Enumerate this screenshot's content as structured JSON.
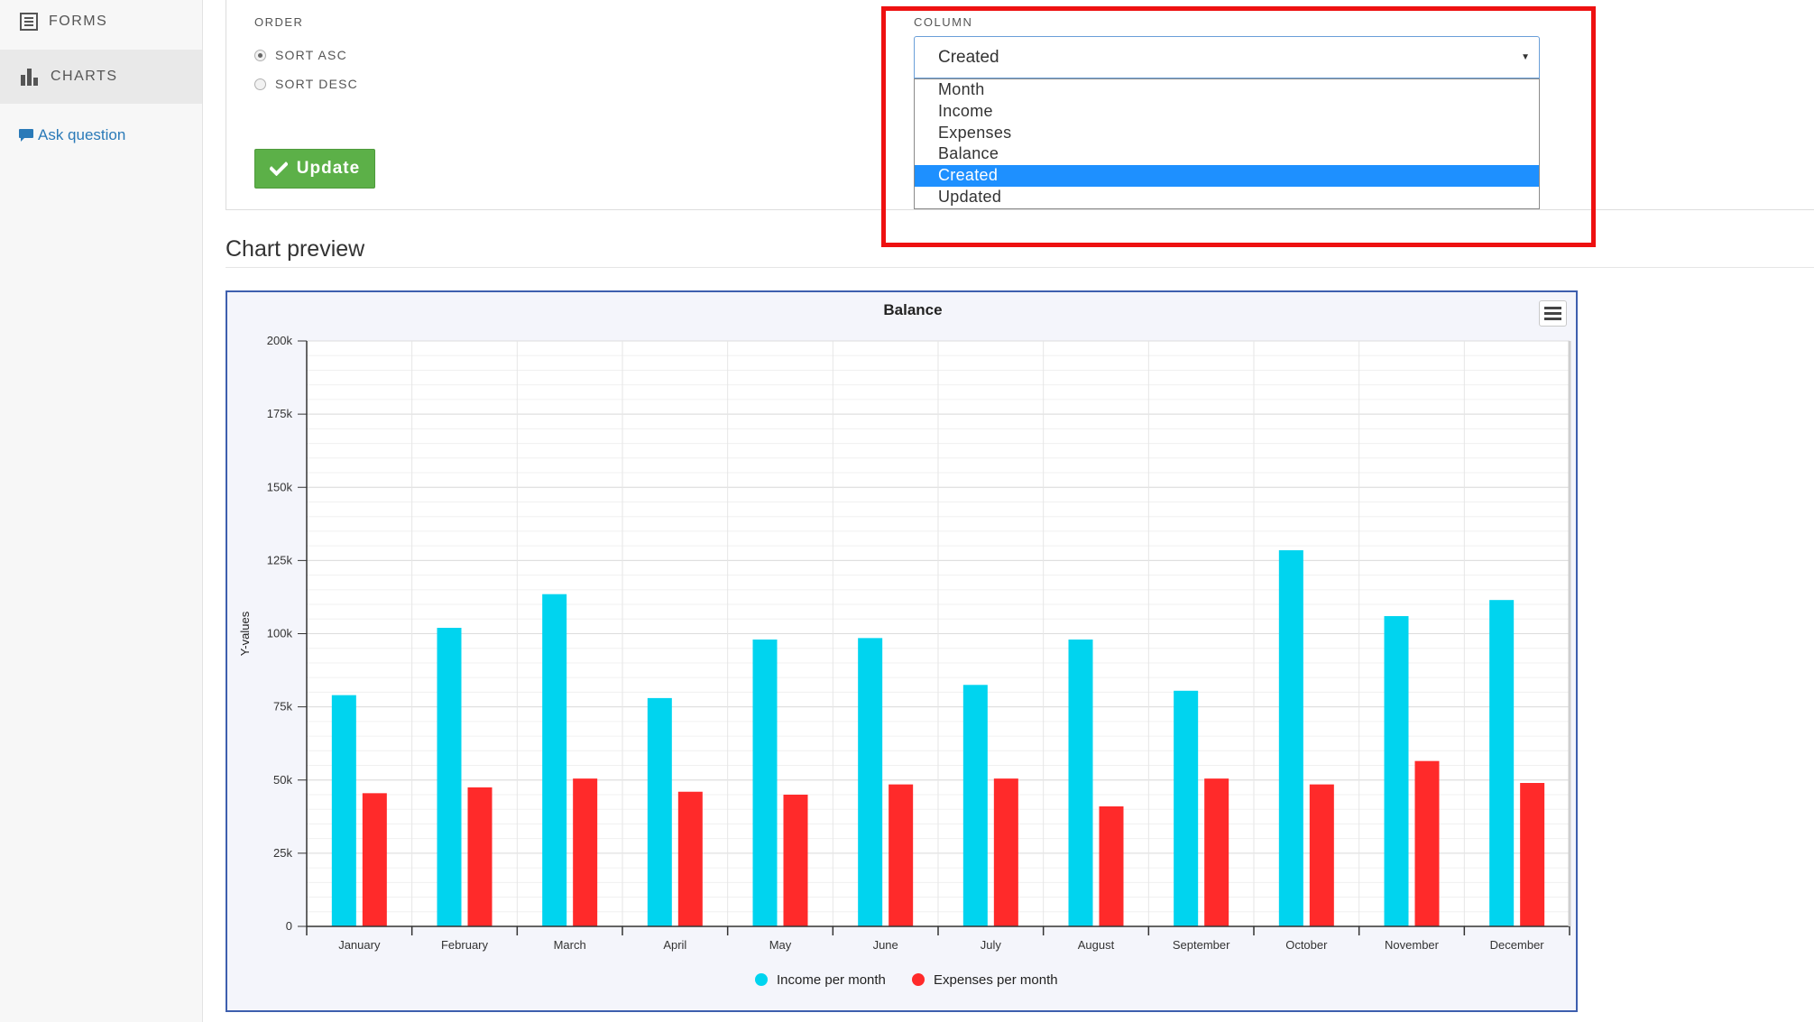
{
  "sidebar": {
    "items": [
      {
        "label": "FORMS",
        "icon": "list-icon"
      },
      {
        "label": "CHARTS",
        "icon": "bar-chart-icon"
      }
    ],
    "ask_question": "Ask question"
  },
  "order": {
    "label": "ORDER",
    "options": [
      "SORT ASC",
      "SORT DESC"
    ],
    "selected": "SORT ASC"
  },
  "update_button": "Update",
  "column": {
    "label": "COLUMN",
    "selected": "Created",
    "options": [
      "Month",
      "Income",
      "Expenses",
      "Balance",
      "Created",
      "Updated"
    ]
  },
  "preview": {
    "title": "Chart preview"
  },
  "colors": {
    "income": "#00d4ef",
    "expenses": "#ff2a2a",
    "accent": "#1e90ff",
    "button": "#5cb048",
    "highlight": "#ee1111"
  },
  "chart_data": {
    "type": "bar",
    "title": "Balance",
    "xlabel": "",
    "ylabel": "Y-values",
    "ylim": [
      0,
      200000
    ],
    "yticks": [
      "0",
      "25k",
      "50k",
      "75k",
      "100k",
      "125k",
      "150k",
      "175k",
      "200k"
    ],
    "categories": [
      "January",
      "February",
      "March",
      "April",
      "May",
      "June",
      "July",
      "August",
      "September",
      "October",
      "November",
      "December"
    ],
    "series": [
      {
        "name": "Income per month",
        "color": "#00d4ef",
        "values": [
          79000,
          102000,
          113500,
          78000,
          98000,
          98500,
          82500,
          98000,
          80500,
          128500,
          106000,
          111500
        ]
      },
      {
        "name": "Expenses per month",
        "color": "#ff2a2a",
        "values": [
          45500,
          47500,
          50500,
          46000,
          45000,
          48500,
          50500,
          41000,
          50500,
          48500,
          56500,
          49000
        ]
      }
    ],
    "legend": "bottom-center",
    "grid": true
  }
}
